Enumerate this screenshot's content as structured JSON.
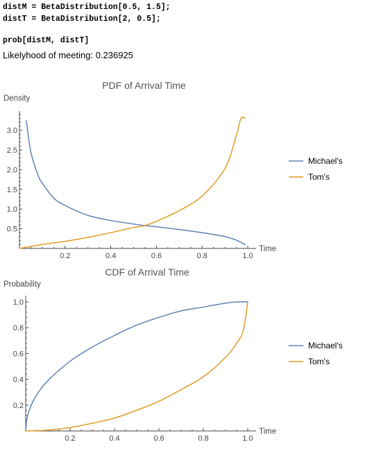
{
  "notebook": {
    "lines": [
      "distM = BetaDistribution[0.5, 1.5];",
      "distT = BetaDistribution[2, 0.5];",
      "prob[distM, distT]"
    ],
    "output": "Likelyhood of meeting: 0.236925"
  },
  "colors": {
    "michael": "#5e81b5",
    "tom": "#e19c24"
  },
  "chart_data": [
    {
      "type": "line",
      "title": "PDF of Arrival Time",
      "xlabel": "Time",
      "ylabel": "Density",
      "xlim": [
        0,
        1
      ],
      "ylim": [
        0,
        3.4
      ],
      "xticks": [
        "0.2",
        "0.4",
        "0.6",
        "0.8",
        "1.0"
      ],
      "yticks": [
        "0.5",
        "1.0",
        "1.5",
        "2.0",
        "2.5",
        "3.0"
      ],
      "legend_position": "right",
      "series": [
        {
          "name": "Michael's",
          "color": "#5e81b5",
          "x": [
            0.03,
            0.05,
            0.08,
            0.1,
            0.15,
            0.2,
            0.3,
            0.4,
            0.5,
            0.55,
            0.6,
            0.7,
            0.8,
            0.9,
            0.95,
            0.99
          ],
          "y": [
            3.25,
            2.45,
            1.88,
            1.66,
            1.28,
            1.09,
            0.84,
            0.71,
            0.62,
            0.58,
            0.55,
            0.48,
            0.4,
            0.3,
            0.21,
            0.09
          ]
        },
        {
          "name": "Tom's",
          "color": "#e19c24",
          "x": [
            0.0,
            0.1,
            0.2,
            0.3,
            0.4,
            0.5,
            0.55,
            0.6,
            0.7,
            0.8,
            0.9,
            0.95,
            0.97,
            0.99
          ],
          "y": [
            0.0,
            0.1,
            0.18,
            0.28,
            0.4,
            0.53,
            0.58,
            0.69,
            0.96,
            1.33,
            2.03,
            2.87,
            3.3,
            3.3
          ]
        }
      ]
    },
    {
      "type": "line",
      "title": "CDF of Arrival Time",
      "xlabel": "Time",
      "ylabel": "Probability",
      "xlim": [
        0,
        1
      ],
      "ylim": [
        0,
        1.0
      ],
      "xticks": [
        "0.2",
        "0.4",
        "0.6",
        "0.8",
        "1.0"
      ],
      "yticks": [
        "0.2",
        "0.4",
        "0.6",
        "0.8",
        "1.0"
      ],
      "legend_position": "right",
      "series": [
        {
          "name": "Michael's",
          "color": "#5e81b5",
          "x": [
            0.0,
            0.005,
            0.02,
            0.05,
            0.1,
            0.2,
            0.3,
            0.4,
            0.5,
            0.6,
            0.7,
            0.8,
            0.9,
            0.95,
            1.0
          ],
          "y": [
            0.0,
            0.09,
            0.18,
            0.28,
            0.39,
            0.54,
            0.65,
            0.74,
            0.82,
            0.88,
            0.93,
            0.96,
            0.99,
            1.0,
            1.0
          ]
        },
        {
          "name": "Tom's",
          "color": "#e19c24",
          "x": [
            0.0,
            0.1,
            0.2,
            0.3,
            0.4,
            0.5,
            0.6,
            0.7,
            0.8,
            0.9,
            0.95,
            0.98,
            1.0
          ],
          "y": [
            0.0,
            0.006,
            0.026,
            0.06,
            0.1,
            0.16,
            0.23,
            0.32,
            0.42,
            0.57,
            0.68,
            0.78,
            1.0
          ]
        }
      ]
    }
  ]
}
